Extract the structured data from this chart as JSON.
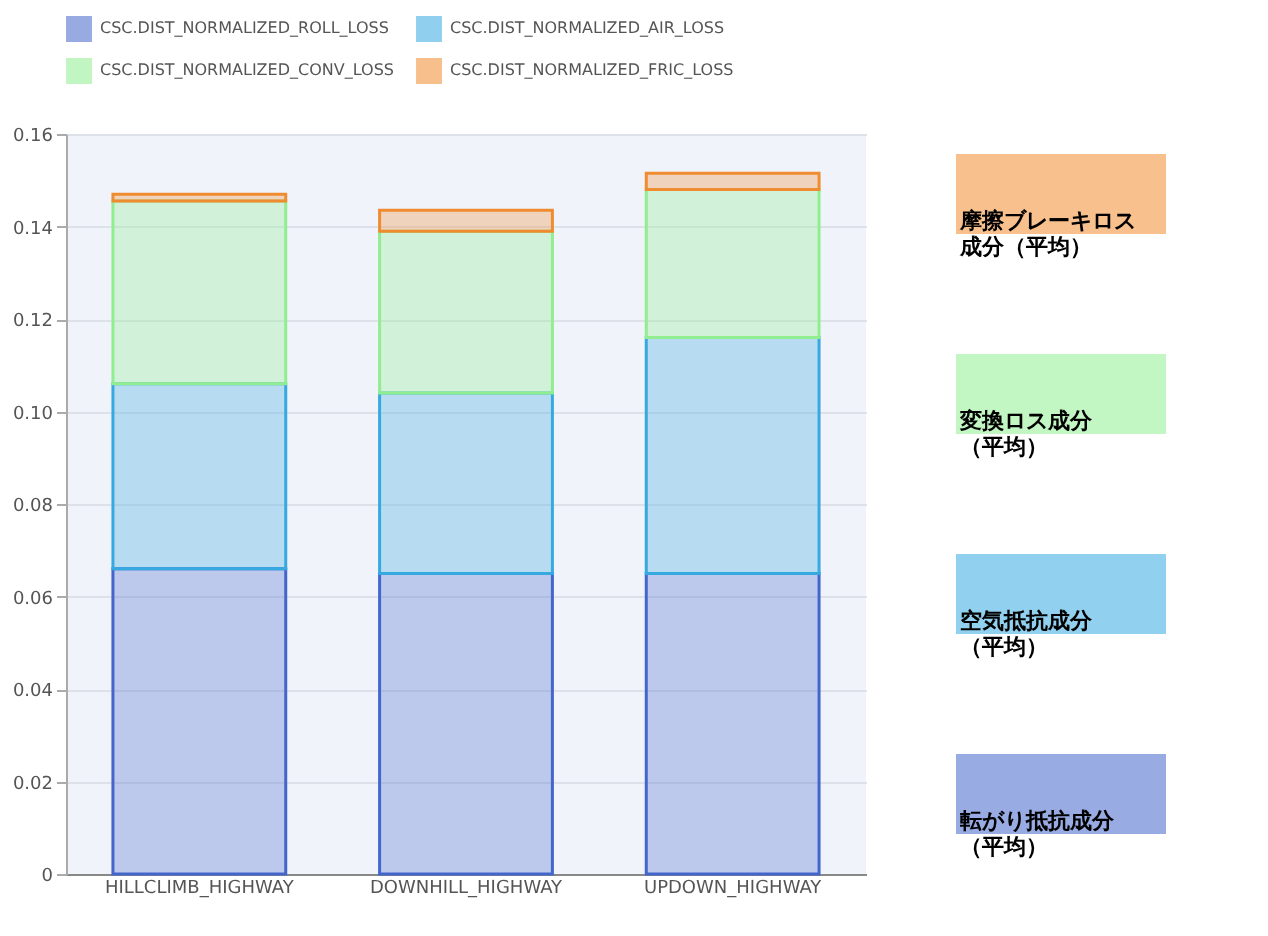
{
  "chart_data": {
    "type": "bar",
    "stacked": true,
    "categories": [
      "HILLCLIMB_HIGHWAY",
      "DOWNHILL_HIGHWAY",
      "UPDOWN_HIGHWAY"
    ],
    "series": [
      {
        "name": "CSC.DIST_NORMALIZED_ROLL_LOSS",
        "color": "#4466cc",
        "values": [
          0.066,
          0.065,
          0.065
        ]
      },
      {
        "name": "CSC.DIST_NORMALIZED_AIR_LOSS",
        "color": "#36a9e1",
        "values": [
          0.04,
          0.039,
          0.051
        ]
      },
      {
        "name": "CSC.DIST_NORMALIZED_CONV_LOSS",
        "color": "#90ee90",
        "values": [
          0.0395,
          0.035,
          0.032
        ]
      },
      {
        "name": "CSC.DIST_NORMALIZED_FRIC_LOSS",
        "color": "#f08c30",
        "values": [
          0.0015,
          0.0045,
          0.0035
        ]
      }
    ],
    "ylim": [
      0,
      0.16
    ],
    "yticks": [
      {
        "value": 0,
        "label": "0"
      },
      0.02,
      0.04,
      0.06,
      0.08,
      {
        "value": 0.1,
        "label": "0.10"
      },
      0.12,
      0.14,
      0.16
    ],
    "grid": "y",
    "legend": "top",
    "annotations": [
      "転がり抵抗成分（平均）",
      "空気抵抗成分（平均）",
      "変換ロス成分（平均）",
      "摩擦ブレーキロス成分（平均）"
    ]
  }
}
